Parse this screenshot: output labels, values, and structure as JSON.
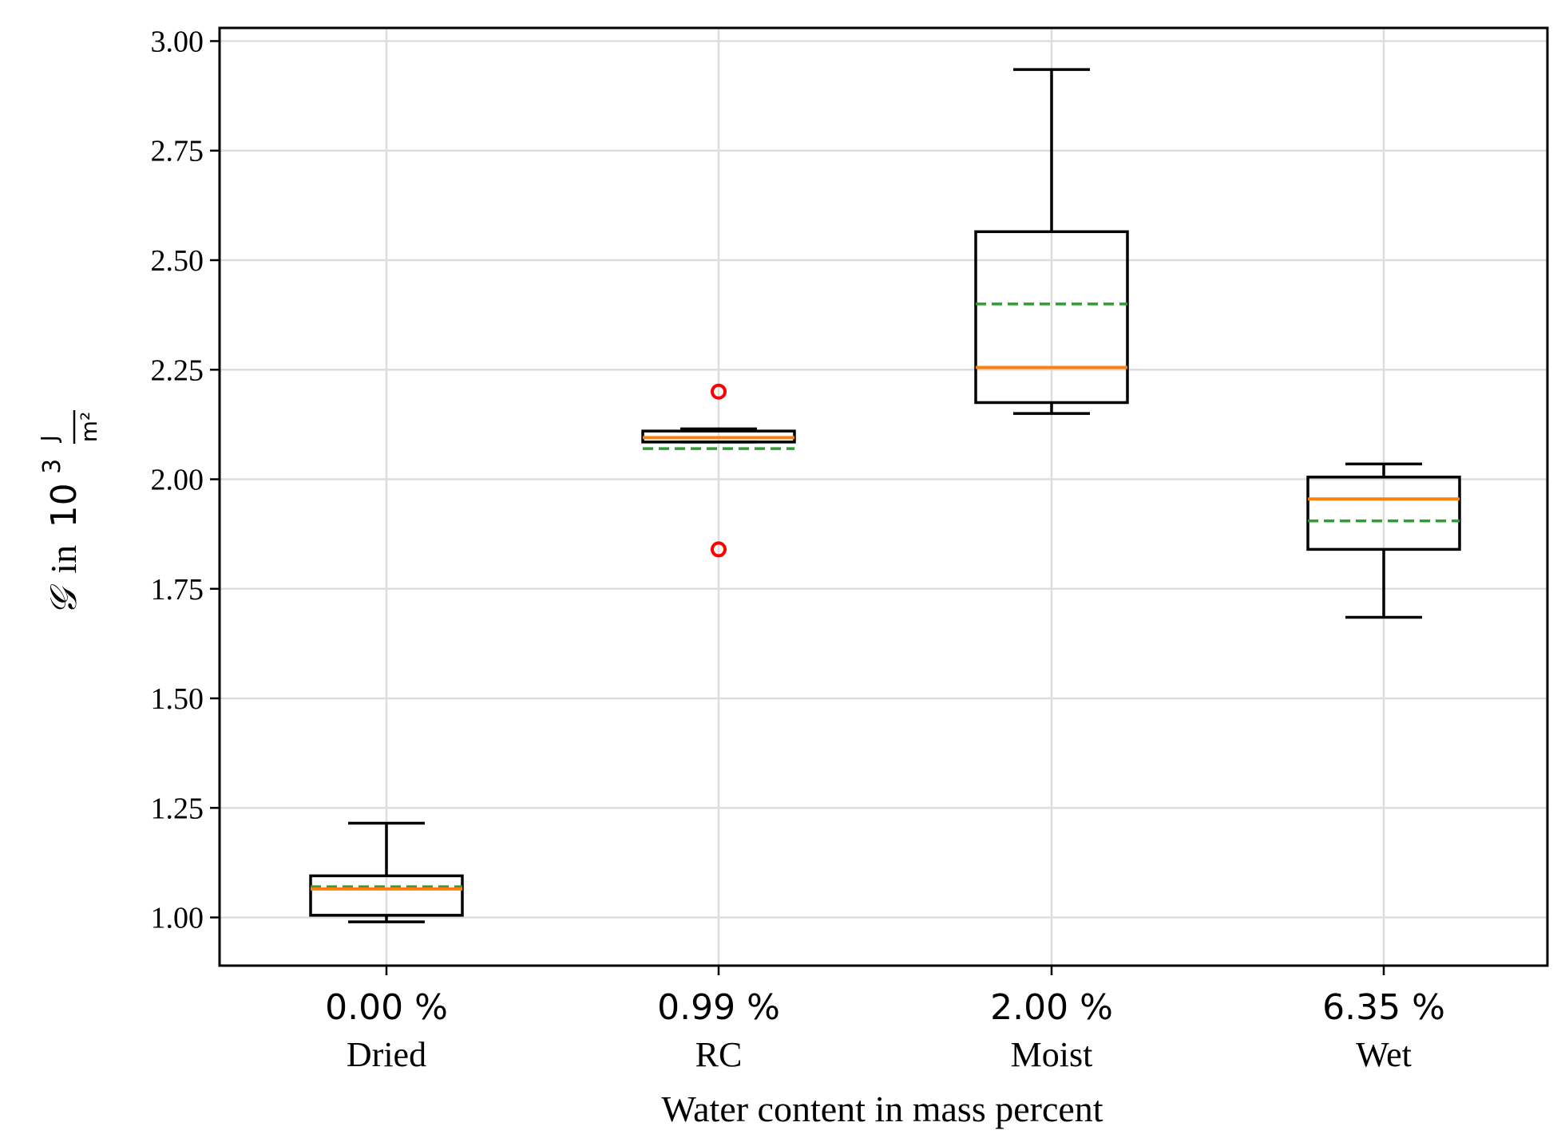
{
  "chart_data": {
    "type": "boxplot",
    "xlabel": "Water content in mass percent",
    "ylabel": {
      "symbol": "𝒢",
      "in": "in",
      "base": "10",
      "exponent": "3",
      "unit_num": "J",
      "unit_den": "m²"
    },
    "ylim": [
      0.89,
      3.03
    ],
    "yticks": [
      "1.00",
      "1.25",
      "1.50",
      "1.75",
      "2.00",
      "2.25",
      "2.50",
      "2.75",
      "3.00"
    ],
    "ytick_values": [
      1.0,
      1.25,
      1.5,
      1.75,
      2.0,
      2.25,
      2.5,
      2.75,
      3.0
    ],
    "grid": true,
    "legend": "none",
    "categories": [
      {
        "tick": "0.00 %",
        "name": "Dried"
      },
      {
        "tick": "0.99 %",
        "name": "RC"
      },
      {
        "tick": "2.00 %",
        "name": "Moist"
      },
      {
        "tick": "6.35 %",
        "name": "Wet"
      }
    ],
    "boxes": [
      {
        "whisker_low": 0.99,
        "q1": 1.005,
        "median": 1.065,
        "mean": 1.07,
        "q3": 1.095,
        "whisker_high": 1.215,
        "outliers": []
      },
      {
        "whisker_low": 2.085,
        "q1": 2.085,
        "median": 2.095,
        "mean": 2.07,
        "q3": 2.11,
        "whisker_high": 2.115,
        "outliers": [
          2.2,
          1.84
        ]
      },
      {
        "whisker_low": 2.15,
        "q1": 2.175,
        "median": 2.255,
        "mean": 2.4,
        "q3": 2.565,
        "whisker_high": 2.935,
        "outliers": []
      },
      {
        "whisker_low": 1.685,
        "q1": 1.84,
        "median": 1.955,
        "mean": 1.905,
        "q3": 2.005,
        "whisker_high": 2.035,
        "outliers": []
      }
    ],
    "colors": {
      "box": "#000000",
      "median": "#ff7f0e",
      "mean": "#2ca02c",
      "outlier": "#ff0000",
      "grid": "#dddddd"
    }
  }
}
